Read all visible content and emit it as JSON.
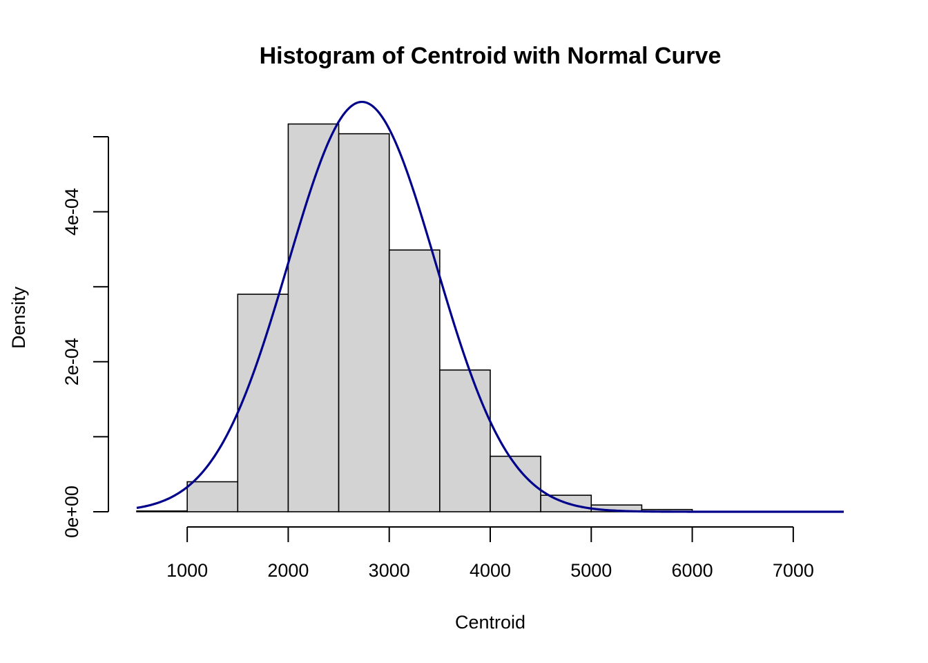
{
  "chart_data": {
    "type": "bar",
    "title": "Histogram of Centroid with Normal Curve",
    "xlabel": "Centroid",
    "ylabel": "Density",
    "xlim": [
      500,
      7500
    ],
    "ylim": [
      0,
      0.0005
    ],
    "x_ticks": [
      1000,
      2000,
      3000,
      4000,
      5000,
      6000,
      7000
    ],
    "x_tick_labels": [
      "1000",
      "2000",
      "3000",
      "4000",
      "5000",
      "6000",
      "7000"
    ],
    "y_ticks": [
      0,
      0.0001,
      0.0002,
      0.0003,
      0.0004,
      0.0005
    ],
    "y_tick_labels": [
      "0e+00",
      "",
      "2e-04",
      "",
      "4e-04",
      ""
    ],
    "bins": [
      {
        "start": 500,
        "end": 1000,
        "density": 1e-06
      },
      {
        "start": 1000,
        "end": 1500,
        "density": 4e-05
      },
      {
        "start": 1500,
        "end": 2000,
        "density": 0.00029
      },
      {
        "start": 2000,
        "end": 2500,
        "density": 0.000517
      },
      {
        "start": 2500,
        "end": 3000,
        "density": 0.000504
      },
      {
        "start": 3000,
        "end": 3500,
        "density": 0.000349
      },
      {
        "start": 3500,
        "end": 4000,
        "density": 0.000189
      },
      {
        "start": 4000,
        "end": 4500,
        "density": 7.4e-05
      },
      {
        "start": 4500,
        "end": 5000,
        "density": 2.2e-05
      },
      {
        "start": 5000,
        "end": 5500,
        "density": 9e-06
      },
      {
        "start": 5500,
        "end": 6000,
        "density": 3e-06
      },
      {
        "start": 6000,
        "end": 6500,
        "density": 0.0
      },
      {
        "start": 6500,
        "end": 7000,
        "density": 0.0
      },
      {
        "start": 7000,
        "end": 7500,
        "density": 0.0
      }
    ],
    "normal_curve": {
      "mean": 2730,
      "sd": 730
    },
    "bar_fill": "#d3d3d3",
    "bar_stroke": "#000000",
    "curve_color": "#00008b",
    "grid": false
  }
}
